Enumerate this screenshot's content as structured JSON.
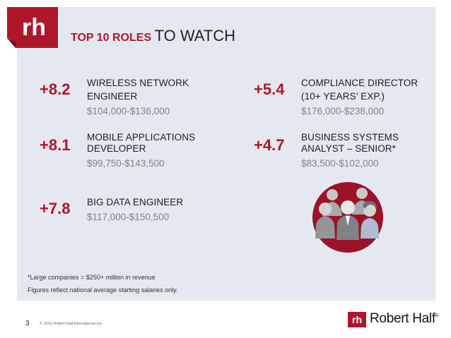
{
  "header": {
    "title_red": "TOP 10 ROLES",
    "title_black": "TO WATCH",
    "logo_text": "rh"
  },
  "roles": [
    {
      "change": "+8.2",
      "title_line1": "WIRELESS NETWORK",
      "title_line2": "ENGINEER",
      "salary": "$104,000-$136,000"
    },
    {
      "change": "+8.1",
      "title_line1": "MOBILE APPLICATIONS",
      "title_line2": "DEVELOPER",
      "salary": "$99,750-$143,500"
    },
    {
      "change": "+7.8",
      "title_line1": "BIG DATA ENGINEER",
      "salary": "$117,000-$150,500"
    },
    {
      "change": "+5.4",
      "title_line1": "COMPLIANCE DIRECTOR",
      "title_line2": "(10+ YEARS’ EXP.)",
      "salary": "$176,000-$238,000"
    },
    {
      "change": "+4.7",
      "title_line1": "BUSINESS SYSTEMS",
      "title_line2": "ANALYST – SENIOR*",
      "salary": "$83,500-$102,000"
    }
  ],
  "notes": {
    "line1": "*Large companies = $250+ million in revenue",
    "line2": "Figures reflect national average starting salaries only."
  },
  "footer": {
    "page_number": "3",
    "copyright": "© 2015 Robert Half International Inc.",
    "brand": "Robert Half",
    "brand_mark": "®"
  },
  "colors": {
    "accent": "#b0162b",
    "panel": "#e5e8f0",
    "salary_gray": "#808285"
  },
  "icons": [
    "rh-logo",
    "people-group-icon",
    "robert-half-logo"
  ]
}
